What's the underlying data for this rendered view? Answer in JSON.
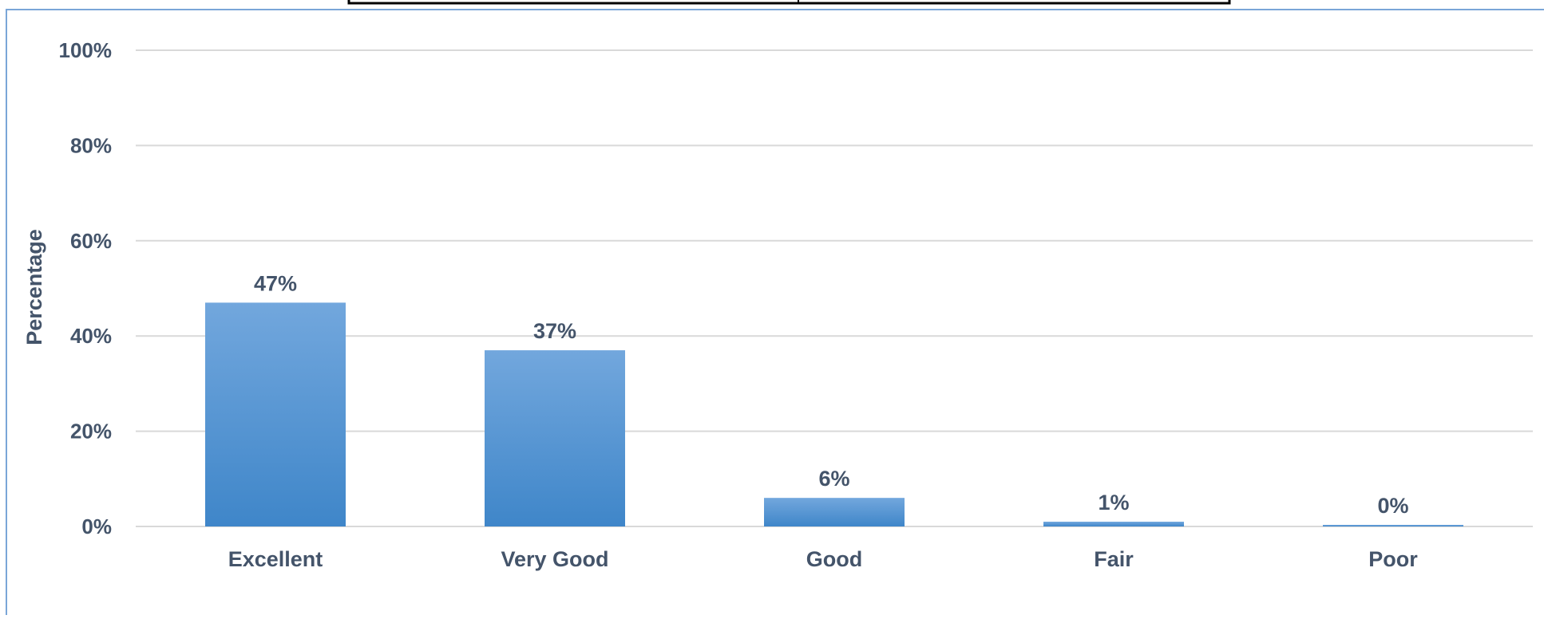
{
  "chart_data": {
    "type": "bar",
    "categories": [
      "Excellent",
      "Very Good",
      "Good",
      "Fair",
      "Poor"
    ],
    "values": [
      47,
      37,
      6,
      1,
      0
    ],
    "value_labels": [
      "47%",
      "37%",
      "6%",
      "1%",
      "0%"
    ],
    "title": "",
    "xlabel": "",
    "ylabel": "Percentage",
    "ylim": [
      0,
      100
    ],
    "yticks": [
      0,
      20,
      40,
      60,
      80,
      100
    ],
    "ytick_labels": [
      "0%",
      "20%",
      "40%",
      "60%",
      "80%",
      "100%"
    ],
    "grid": true,
    "legend": "none",
    "colors": {
      "bar_top": "#72a7dd",
      "bar_bottom": "#3f86c9",
      "text": "#44546a",
      "grid": "#d9d9d9",
      "frame": "#7aa6d8",
      "header_border": "#000000"
    }
  }
}
